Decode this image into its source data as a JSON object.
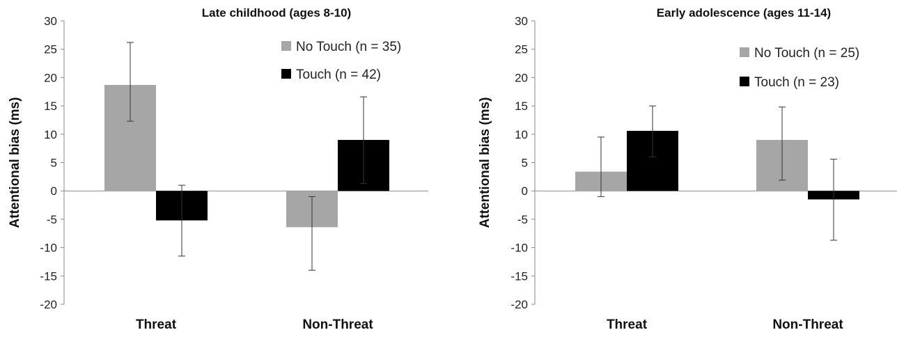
{
  "chart_data": [
    {
      "type": "bar",
      "title": "Late childhood (ages 8-10)",
      "xlabel": "",
      "ylabel": "Attentional bias (ms)",
      "ylim": [
        -20,
        30
      ],
      "yticks": [
        30,
        25,
        20,
        15,
        10,
        5,
        0,
        -5,
        -10,
        -15,
        -20
      ],
      "categories": [
        "Threat",
        "Non-Threat"
      ],
      "legend_position": "top-right",
      "series": [
        {
          "name": "No Touch (n = 35)",
          "color": "#a6a6a6",
          "values": [
            18.7,
            -6.4
          ],
          "error_low": [
            12.3,
            -14.0
          ],
          "error_high": [
            26.2,
            -1.0
          ]
        },
        {
          "name": "Touch (n = 42)",
          "color": "#000000",
          "values": [
            -5.2,
            9.0
          ],
          "error_low": [
            -11.5,
            1.3
          ],
          "error_high": [
            1.0,
            16.6
          ]
        }
      ]
    },
    {
      "type": "bar",
      "title": "Early adolescence (ages 11-14)",
      "xlabel": "",
      "ylabel": "Attentional bias (ms)",
      "ylim": [
        -20,
        30
      ],
      "yticks": [
        30,
        25,
        20,
        15,
        10,
        5,
        0,
        -5,
        -10,
        -15,
        -20
      ],
      "categories": [
        "Threat",
        "Non-Threat"
      ],
      "legend_position": "top-right",
      "series": [
        {
          "name": "No Touch (n = 25)",
          "color": "#a6a6a6",
          "values": [
            3.4,
            9.0
          ],
          "error_low": [
            -1.0,
            1.9
          ],
          "error_high": [
            9.5,
            14.8
          ]
        },
        {
          "name": "Touch (n = 23)",
          "color": "#000000",
          "values": [
            10.6,
            -1.5
          ],
          "error_low": [
            6.0,
            -8.7
          ],
          "error_high": [
            15.0,
            5.6
          ]
        }
      ]
    }
  ]
}
